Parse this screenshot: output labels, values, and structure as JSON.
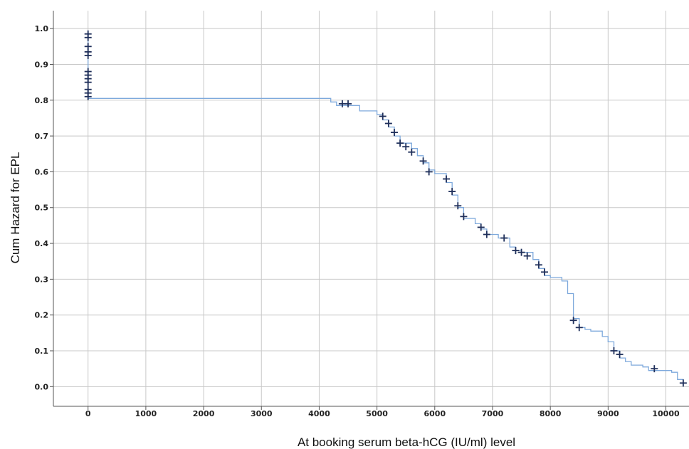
{
  "chart_data": {
    "type": "line",
    "title": "",
    "xlabel": "At booking serum beta-hCG (IU/ml) level",
    "ylabel": "Cum Hazard for EPL",
    "xlim": [
      -600,
      10400
    ],
    "ylim": [
      -0.055,
      1.05
    ],
    "xticks": [
      0,
      1000,
      2000,
      3000,
      4000,
      5000,
      6000,
      7000,
      8000,
      9000,
      10000
    ],
    "yticks": [
      0.0,
      0.1,
      0.2,
      0.3,
      0.4,
      0.5,
      0.6,
      0.7,
      0.8,
      0.9,
      1.0
    ],
    "xtick_labels": [
      "0",
      "1000",
      "2000",
      "3000",
      "4000",
      "5000",
      "6000",
      "7000",
      "8000",
      "9000",
      "10000"
    ],
    "ytick_labels": [
      "0.0",
      "0.1",
      "0.2",
      "0.3",
      "0.4",
      "0.5",
      "0.6",
      "0.7",
      "0.8",
      "0.9",
      "1.0"
    ],
    "grid": true,
    "line_color": "#7ea9dc",
    "marker_color": "#1f2f5a",
    "series": [
      {
        "step_x": [
          0,
          4200,
          4300,
          4700,
          5000,
          5100,
          5200,
          5300,
          5400,
          5600,
          5700,
          5800,
          5900,
          6000,
          6200,
          6300,
          6400,
          6500,
          6700,
          6800,
          6900,
          7100,
          7300,
          7400,
          7500,
          7700,
          7800,
          7900,
          8000,
          8200,
          8300,
          8400,
          8500,
          8600,
          8700,
          8900,
          9000,
          9100,
          9200,
          9300,
          9400,
          9600,
          9700,
          10100,
          10200,
          10300
        ],
        "step_y": [
          0.805,
          0.795,
          0.785,
          0.77,
          0.76,
          0.745,
          0.725,
          0.7,
          0.68,
          0.665,
          0.645,
          0.625,
          0.605,
          0.595,
          0.57,
          0.535,
          0.5,
          0.47,
          0.455,
          0.44,
          0.425,
          0.415,
          0.39,
          0.38,
          0.375,
          0.355,
          0.33,
          0.31,
          0.305,
          0.295,
          0.26,
          0.19,
          0.165,
          0.16,
          0.155,
          0.14,
          0.125,
          0.1,
          0.08,
          0.07,
          0.06,
          0.055,
          0.045,
          0.04,
          0.02,
          0.0
        ],
        "censored_x": [
          0,
          0,
          0,
          0,
          0,
          0,
          0,
          0,
          0,
          0,
          0,
          0,
          4400,
          4500,
          5100,
          5200,
          5300,
          5400,
          5500,
          5600,
          5800,
          5900,
          6200,
          6300,
          6400,
          6500,
          6800,
          6900,
          7200,
          7400,
          7500,
          7600,
          7800,
          7900,
          8400,
          8500,
          9100,
          9200,
          9800,
          10300
        ],
        "censored_y": [
          0.985,
          0.975,
          0.95,
          0.935,
          0.925,
          0.88,
          0.87,
          0.86,
          0.85,
          0.83,
          0.82,
          0.81,
          0.79,
          0.79,
          0.755,
          0.735,
          0.71,
          0.68,
          0.67,
          0.655,
          0.63,
          0.6,
          0.58,
          0.545,
          0.505,
          0.475,
          0.445,
          0.425,
          0.415,
          0.38,
          0.375,
          0.365,
          0.34,
          0.32,
          0.185,
          0.165,
          0.1,
          0.09,
          0.05,
          0.01
        ]
      }
    ]
  }
}
